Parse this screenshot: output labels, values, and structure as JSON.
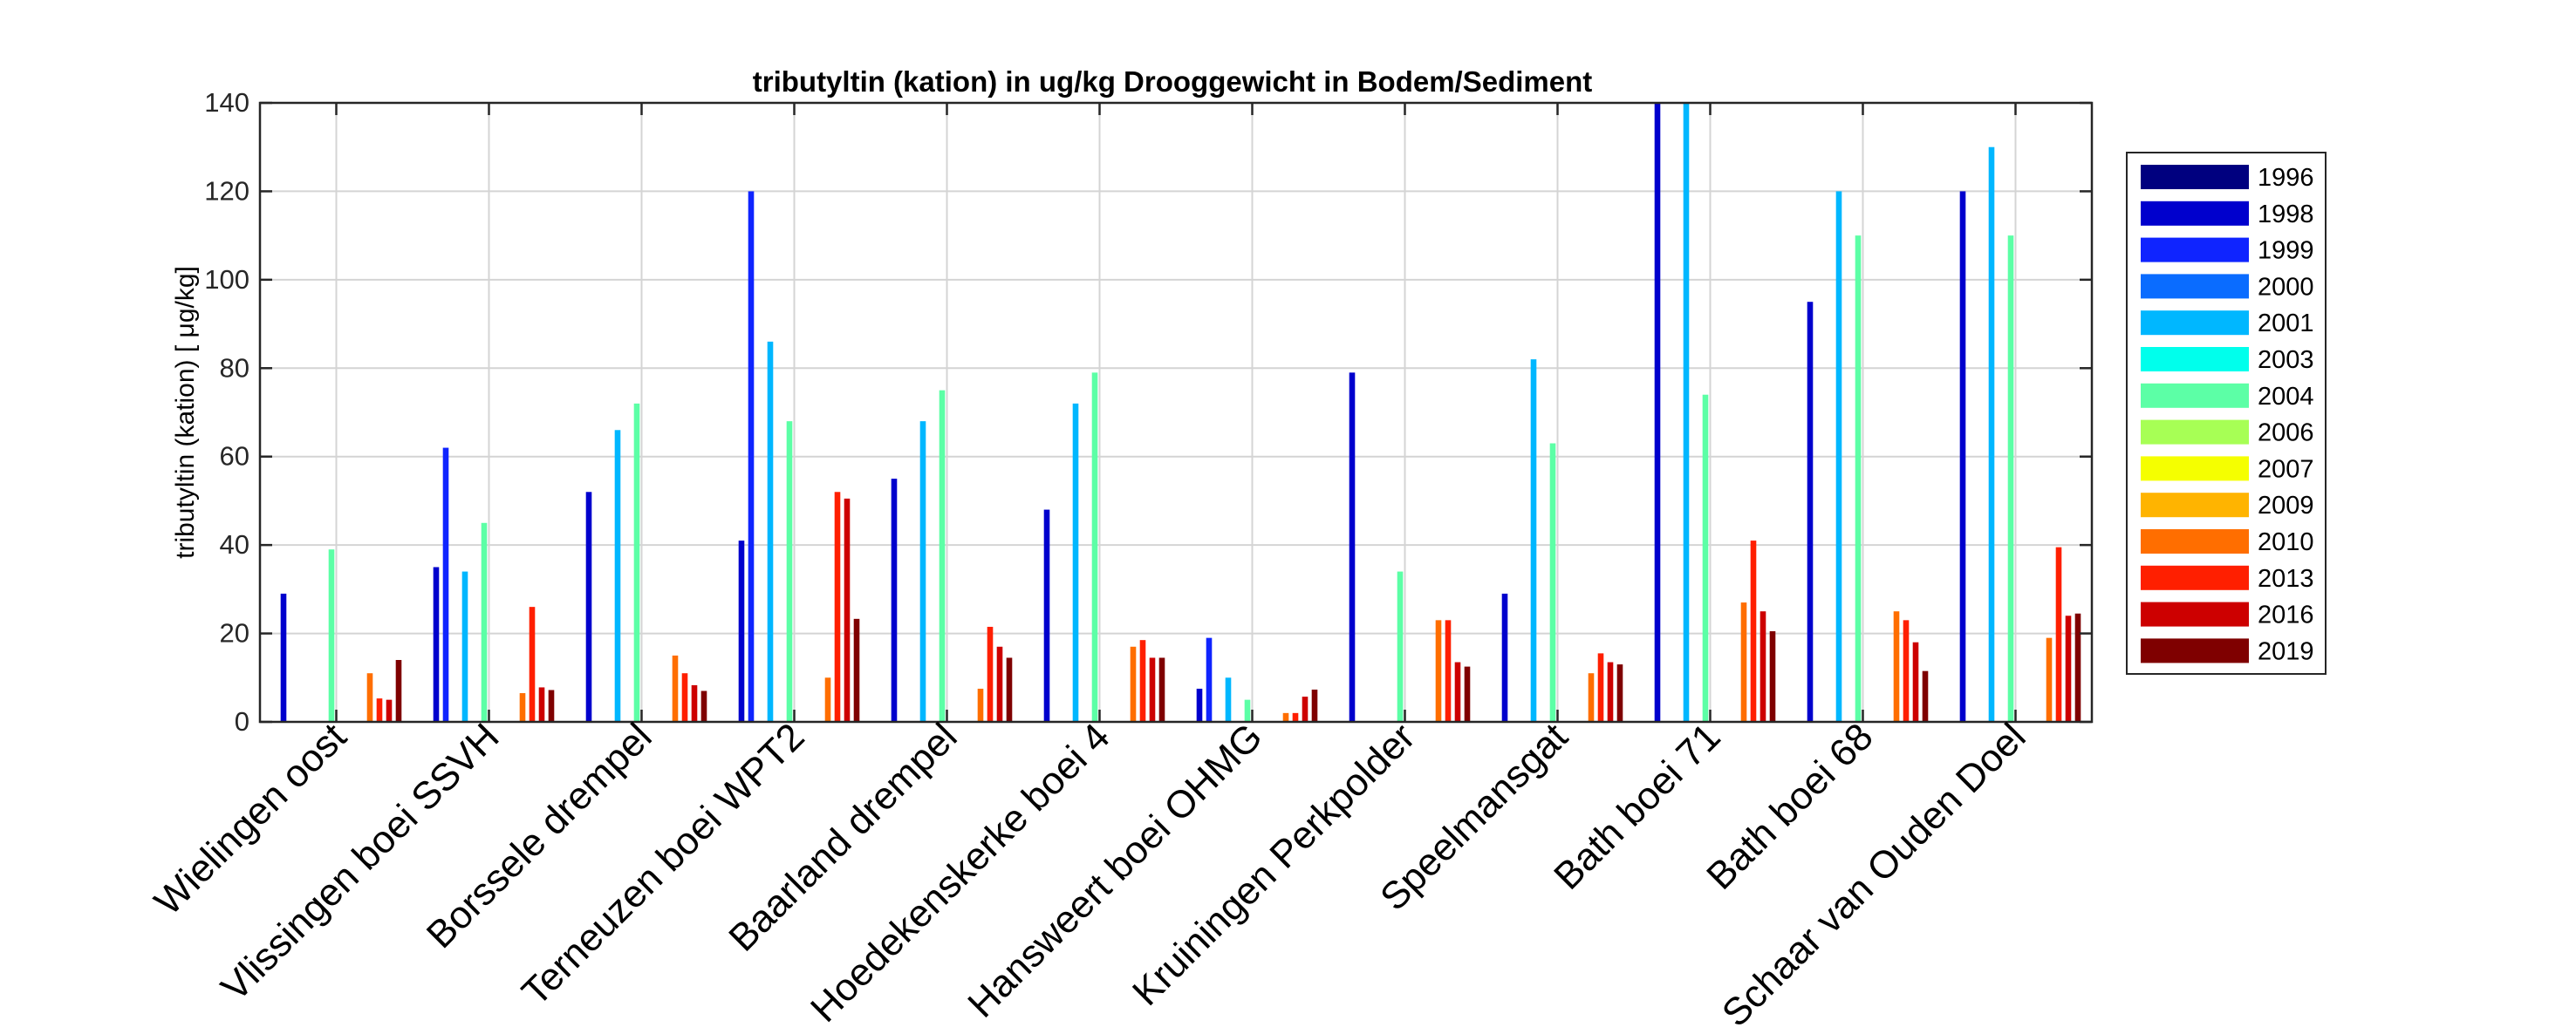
{
  "chart_data": {
    "type": "bar",
    "title": "tributyltin (kation) in ug/kg Drooggewicht in Bodem/Sediment",
    "ylabel": "tributyltin (kation) [ μg/kg]",
    "xlabel": "",
    "ylim": [
      0,
      140
    ],
    "yticks": [
      0,
      20,
      40,
      60,
      80,
      100,
      120,
      140
    ],
    "grid": true,
    "legend_position": "right",
    "categories": [
      "Wielingen oost",
      "Vlissingen boei SSVH",
      "Borssele drempel",
      "Terneuzen boei WPT2",
      "Baarland drempel",
      "Hoedekenskerke boei 4",
      "Hansweert boei OHMG",
      "Kruiningen Perkpolder",
      "Speelmansgat",
      "Bath boei 71",
      "Bath boei 68",
      "Schaar van Ouden Doel"
    ],
    "series": [
      {
        "name": "1996",
        "color": "#00007F",
        "values": [
          null,
          null,
          null,
          null,
          null,
          null,
          null,
          null,
          null,
          null,
          null,
          null
        ]
      },
      {
        "name": "1998",
        "color": "#0000CD",
        "values": [
          29,
          35,
          52,
          41,
          55,
          48,
          7.5,
          79,
          29,
          140,
          95,
          120
        ]
      },
      {
        "name": "1999",
        "color": "#0F24FF",
        "values": [
          null,
          62,
          null,
          120,
          null,
          null,
          19,
          null,
          null,
          null,
          null,
          null
        ]
      },
      {
        "name": "2000",
        "color": "#0A6CFF",
        "values": [
          null,
          null,
          null,
          null,
          null,
          null,
          null,
          null,
          null,
          null,
          null,
          null
        ]
      },
      {
        "name": "2001",
        "color": "#00B7FF",
        "values": [
          null,
          34,
          66,
          86,
          68,
          72,
          10,
          null,
          82,
          140,
          120,
          130
        ]
      },
      {
        "name": "2003",
        "color": "#00FFEC",
        "values": [
          null,
          null,
          null,
          null,
          null,
          null,
          null,
          null,
          null,
          null,
          null,
          null
        ]
      },
      {
        "name": "2004",
        "color": "#5CFFA6",
        "values": [
          39,
          45,
          72,
          68,
          75,
          79,
          5,
          34,
          63,
          74,
          110,
          110
        ]
      },
      {
        "name": "2006",
        "color": "#A7FF55",
        "values": [
          null,
          null,
          null,
          null,
          null,
          null,
          null,
          null,
          null,
          null,
          null,
          null
        ]
      },
      {
        "name": "2007",
        "color": "#F5FF00",
        "values": [
          null,
          null,
          null,
          null,
          null,
          null,
          null,
          null,
          null,
          null,
          null,
          null
        ]
      },
      {
        "name": "2009",
        "color": "#FFB400",
        "values": [
          null,
          null,
          null,
          null,
          null,
          null,
          null,
          null,
          null,
          null,
          null,
          null
        ]
      },
      {
        "name": "2010",
        "color": "#FF6E00",
        "values": [
          11,
          6.5,
          15,
          10,
          7.5,
          17,
          2,
          23,
          11,
          27,
          25,
          19
        ]
      },
      {
        "name": "2013",
        "color": "#FF1F00",
        "values": [
          5.3,
          26,
          11,
          52,
          21.5,
          18.5,
          2,
          23,
          15.5,
          41,
          23,
          39.5
        ]
      },
      {
        "name": "2016",
        "color": "#CD0000",
        "values": [
          5,
          7.8,
          8.3,
          50.5,
          17,
          14.5,
          5.7,
          13.5,
          13.5,
          25,
          18,
          24
        ]
      },
      {
        "name": "2019",
        "color": "#7F0000",
        "values": [
          14,
          7.2,
          7,
          23.3,
          14.5,
          14.5,
          7.3,
          12.5,
          13,
          20.5,
          11.5,
          24.5
        ]
      }
    ]
  }
}
